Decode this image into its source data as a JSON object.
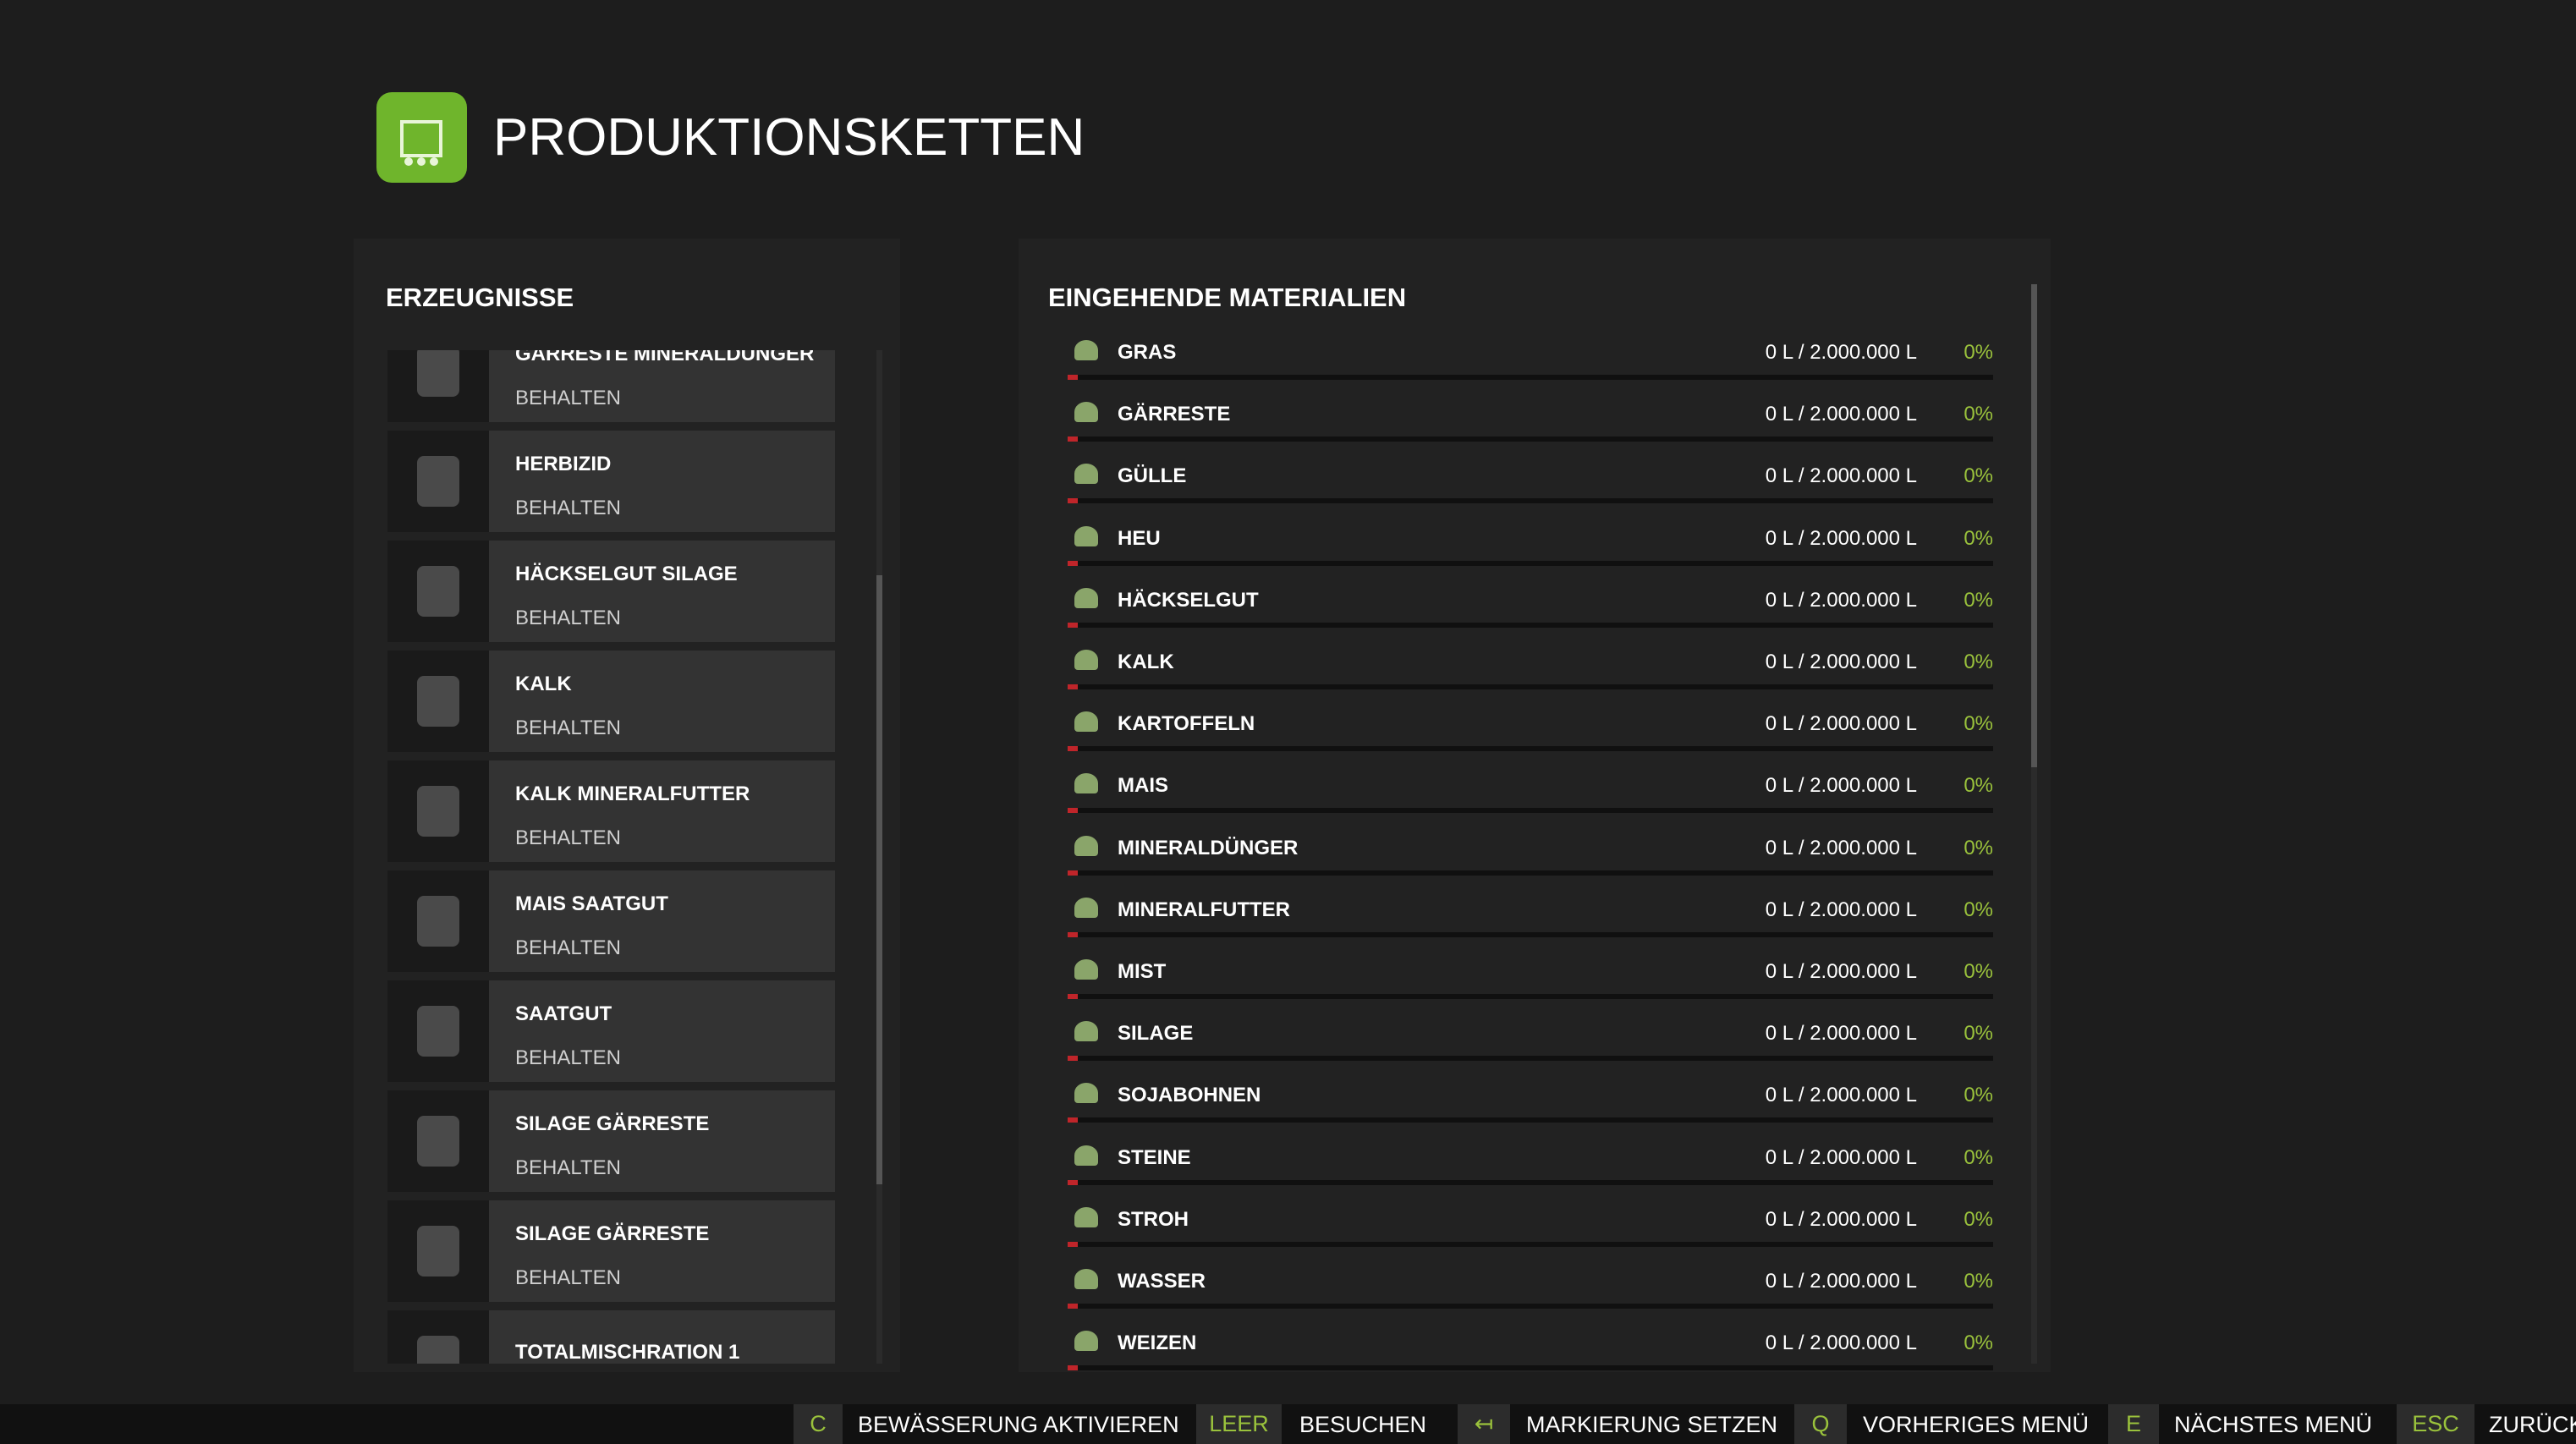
{
  "header": {
    "title": "PRODUKTIONSKETTEN"
  },
  "products": {
    "title": "ERZEUGNISSE",
    "items": [
      {
        "name": "GÄRRESTE MINERALDÜNGER",
        "status": "BEHALTEN"
      },
      {
        "name": "HERBIZID",
        "status": "BEHALTEN"
      },
      {
        "name": "HÄCKSELGUT SILAGE",
        "status": "BEHALTEN"
      },
      {
        "name": "KALK",
        "status": "BEHALTEN"
      },
      {
        "name": "KALK MINERALFUTTER",
        "status": "BEHALTEN"
      },
      {
        "name": "MAIS SAATGUT",
        "status": "BEHALTEN"
      },
      {
        "name": "SAATGUT",
        "status": "BEHALTEN"
      },
      {
        "name": "SILAGE GÄRRESTE",
        "status": "BEHALTEN"
      },
      {
        "name": "SILAGE GÄRRESTE",
        "status": "BEHALTEN"
      },
      {
        "name": "TOTALMISCHRATION 1"
      }
    ]
  },
  "materials": {
    "title": "EINGEHENDE MATERIALIEN",
    "rows": [
      {
        "name": "GRAS",
        "amount": "0 L / 2.000.000 L",
        "percent": "0%"
      },
      {
        "name": "GÄRRESTE",
        "amount": "0 L / 2.000.000 L",
        "percent": "0%"
      },
      {
        "name": "GÜLLE",
        "amount": "0 L / 2.000.000 L",
        "percent": "0%"
      },
      {
        "name": "HEU",
        "amount": "0 L / 2.000.000 L",
        "percent": "0%"
      },
      {
        "name": "HÄCKSELGUT",
        "amount": "0 L / 2.000.000 L",
        "percent": "0%"
      },
      {
        "name": "KALK",
        "amount": "0 L / 2.000.000 L",
        "percent": "0%"
      },
      {
        "name": "KARTOFFELN",
        "amount": "0 L / 2.000.000 L",
        "percent": "0%"
      },
      {
        "name": "MAIS",
        "amount": "0 L / 2.000.000 L",
        "percent": "0%"
      },
      {
        "name": "MINERALDÜNGER",
        "amount": "0 L / 2.000.000 L",
        "percent": "0%"
      },
      {
        "name": "MINERALFUTTER",
        "amount": "0 L / 2.000.000 L",
        "percent": "0%"
      },
      {
        "name": "MIST",
        "amount": "0 L / 2.000.000 L",
        "percent": "0%"
      },
      {
        "name": "SILAGE",
        "amount": "0 L / 2.000.000 L",
        "percent": "0%"
      },
      {
        "name": "SOJABOHNEN",
        "amount": "0 L / 2.000.000 L",
        "percent": "0%"
      },
      {
        "name": "STEINE",
        "amount": "0 L / 2.000.000 L",
        "percent": "0%"
      },
      {
        "name": "STROH",
        "amount": "0 L / 2.000.000 L",
        "percent": "0%"
      },
      {
        "name": "WASSER",
        "amount": "0 L / 2.000.000 L",
        "percent": "0%"
      },
      {
        "name": "WEIZEN",
        "amount": "0 L / 2.000.000 L",
        "percent": "0%"
      }
    ]
  },
  "footer": {
    "actions": [
      {
        "key": "C",
        "label": "BEWÄSSERUNG AKTIVIEREN"
      },
      {
        "key": "LEER",
        "label": "BESUCHEN"
      },
      {
        "key": "↤",
        "label": "MARKIERUNG SETZEN"
      },
      {
        "key": "Q",
        "label": "VORHERIGES MENÜ"
      },
      {
        "key": "E",
        "label": "NÄCHSTES MENÜ"
      },
      {
        "key": "ESC",
        "label": "ZURÜCK"
      }
    ]
  }
}
